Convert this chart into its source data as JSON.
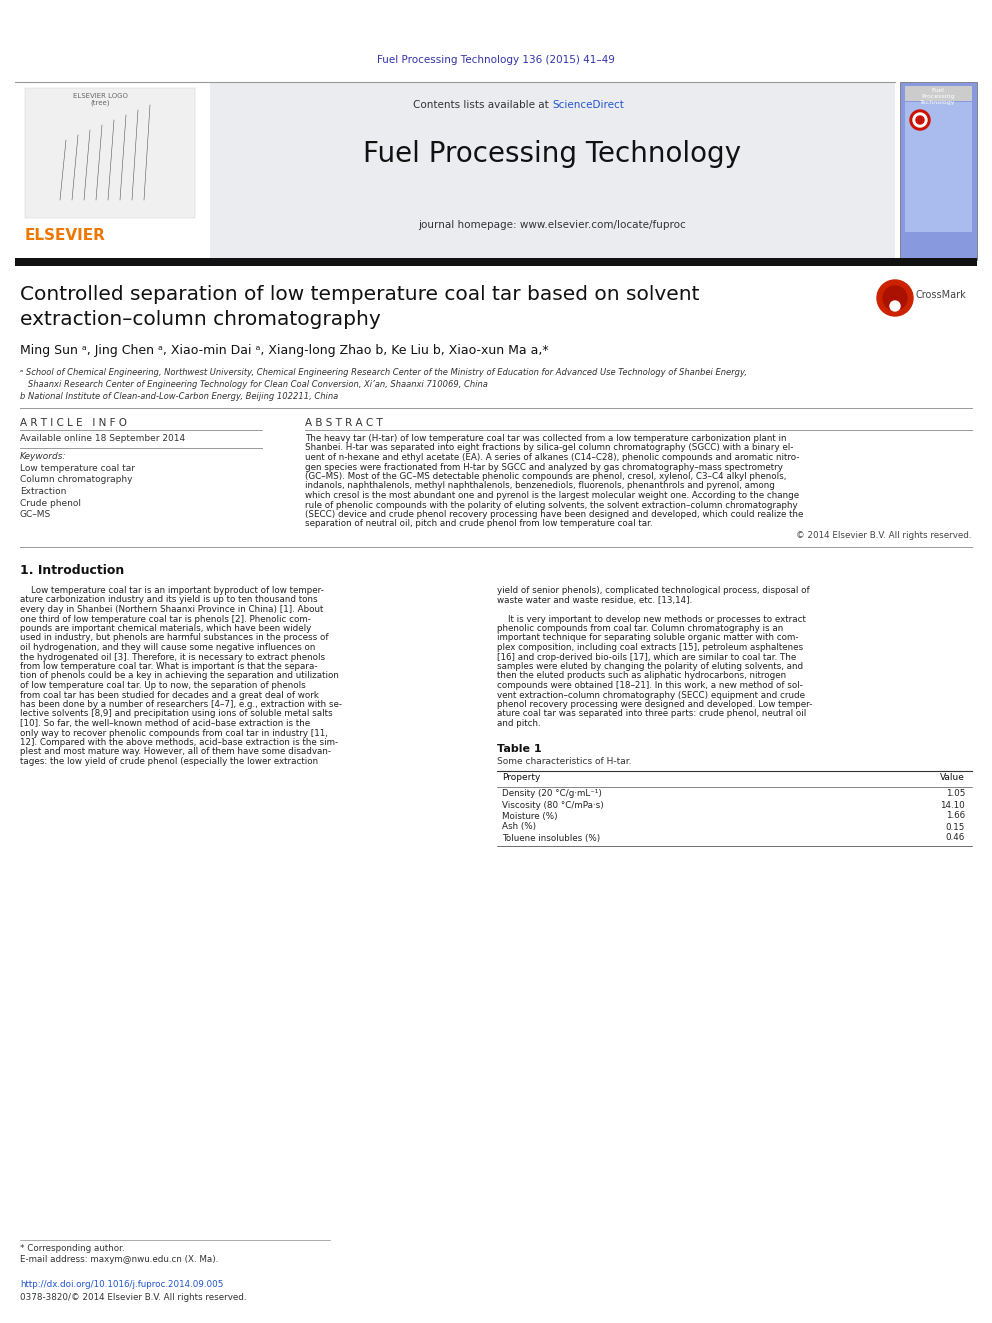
{
  "page_width": 9.92,
  "page_height": 13.23,
  "bg_color": "#ffffff",
  "top_journal_ref": "Fuel Processing Technology 136 (2015) 41–49",
  "top_journal_ref_color": "#3333aa",
  "header_bg_color": "#eaecf0",
  "journal_title": "Fuel Processing Technology",
  "journal_homepage": "journal homepage: www.elsevier.com/locate/fuproc",
  "contents_text": "Contents lists available at ",
  "sciencedirect_text": "ScienceDirect",
  "sciencedirect_color": "#2255cc",
  "elsevier_color": "#ee7700",
  "article_title_line1": "Controlled separation of low temperature coal tar based on solvent",
  "article_title_line2": "extraction–column chromatography",
  "authors_line": "Ming Sun ᵃ, Jing Chen ᵃ, Xiao-min Dai ᵃ, Xiang-long Zhao b, Ke Liu b, Xiao-xun Ma a,*",
  "affil_a": "ᵃ School of Chemical Engineering, Northwest University, Chemical Engineering Research Center of the Ministry of Education for Advanced Use Technology of Shanbei Energy,",
  "affil_a2": "   Shaanxi Research Center of Engineering Technology for Clean Coal Conversion, Xi’an, Shaanxi 710069, China",
  "affil_b": "b National Institute of Clean-and-Low-Carbon Energy, Beijing 102211, China",
  "article_info_header": "A R T I C L E   I N F O",
  "available_online": "Available online 18 September 2014",
  "keywords_header": "Keywords:",
  "keywords": [
    "Low temperature coal tar",
    "Column chromatography",
    "Extraction",
    "Crude phenol",
    "GC–MS"
  ],
  "abstract_header": "A B S T R A C T",
  "abstract_lines": [
    "The heavy tar (H-tar) of low temperature coal tar was collected from a low temperature carbonization plant in",
    "Shanbei. H-tar was separated into eight fractions by silica-gel column chromatography (SGCC) with a binary el-",
    "uent of n-hexane and ethyl acetate (EA). A series of alkanes (C14–C28), phenolic compounds and aromatic nitro-",
    "gen species were fractionated from H-tar by SGCC and analyzed by gas chromatography–mass spectrometry",
    "(GC–MS). Most of the GC–MS detectable phenolic compounds are phenol, cresol, xylenol, C3–C4 alkyl phenols,",
    "indanols, naphthalenols, methyl naphthalenols, benzenediols, fluorenols, phenanthrols and pyrenol, among",
    "which cresol is the most abundant one and pyrenol is the largest molecular weight one. According to the change",
    "rule of phenolic compounds with the polarity of eluting solvents, the solvent extraction–column chromatography",
    "(SECC) device and crude phenol recovery processing have been designed and developed, which could realize the",
    "separation of neutral oil, pitch and crude phenol from low temperature coal tar."
  ],
  "copyright_text": "© 2014 Elsevier B.V. All rights reserved.",
  "intro_header": "1. Introduction",
  "col1_lines": [
    "    Low temperature coal tar is an important byproduct of low temper-",
    "ature carbonization industry and its yield is up to ten thousand tons",
    "every day in Shanbei (Northern Shaanxi Province in China) [1]. About",
    "one third of low temperature coal tar is phenols [2]. Phenolic com-",
    "pounds are important chemical materials, which have been widely",
    "used in industry, but phenols are harmful substances in the process of",
    "oil hydrogenation, and they will cause some negative influences on",
    "the hydrogenated oil [3]. Therefore, it is necessary to extract phenols",
    "from low temperature coal tar. What is important is that the separa-",
    "tion of phenols could be a key in achieving the separation and utilization",
    "of low temperature coal tar. Up to now, the separation of phenols",
    "from coal tar has been studied for decades and a great deal of work",
    "has been done by a number of researchers [4–7], e.g., extraction with se-",
    "lective solvents [8,9] and precipitation using ions of soluble metal salts",
    "[10]. So far, the well–known method of acid–base extraction is the",
    "only way to recover phenolic compounds from coal tar in industry [11,",
    "12]. Compared with the above methods, acid–base extraction is the sim-",
    "plest and most mature way. However, all of them have some disadvan-",
    "tages: the low yield of crude phenol (especially the lower extraction"
  ],
  "col2_lines": [
    "yield of senior phenols), complicated technological process, disposal of",
    "waste water and waste residue, etc. [13,14].",
    "",
    "    It is very important to develop new methods or processes to extract",
    "phenolic compounds from coal tar. Column chromatography is an",
    "important technique for separating soluble organic matter with com-",
    "plex composition, including coal extracts [15], petroleum asphaltenes",
    "[16] and crop-derived bio-oils [17], which are similar to coal tar. The",
    "samples were eluted by changing the polarity of eluting solvents, and",
    "then the eluted products such as aliphatic hydrocarbons, nitrogen",
    "compounds were obtained [18–21]. In this work, a new method of sol-",
    "vent extraction–column chromatography (SECC) equipment and crude",
    "phenol recovery processing were designed and developed. Low temper-",
    "ature coal tar was separated into three parts: crude phenol, neutral oil",
    "and pitch."
  ],
  "table1_title": "Table 1",
  "table1_subtitle": "Some characteristics of H-tar.",
  "table1_rows": [
    [
      "Density (20 °C/g·mL⁻¹)",
      "1.05"
    ],
    [
      "Viscosity (80 °C/mPa·s)",
      "14.10"
    ],
    [
      "Moisture (%)",
      "1.66"
    ],
    [
      "Ash (%)",
      "0.15"
    ],
    [
      "Toluene insolubles (%)",
      "0.46"
    ]
  ],
  "doi_text": "http://dx.doi.org/10.1016/j.fuproc.2014.09.005",
  "issn_text": "0378-3820/© 2014 Elsevier B.V. All rights reserved.",
  "corresponding_text": "* Corresponding author.",
  "email_text": "E-mail address: maxym@nwu.edu.cn (X. Ma).",
  "link_color": "#2255cc",
  "text_dark": "#111111",
  "text_gray": "#333333",
  "text_light": "#555555"
}
